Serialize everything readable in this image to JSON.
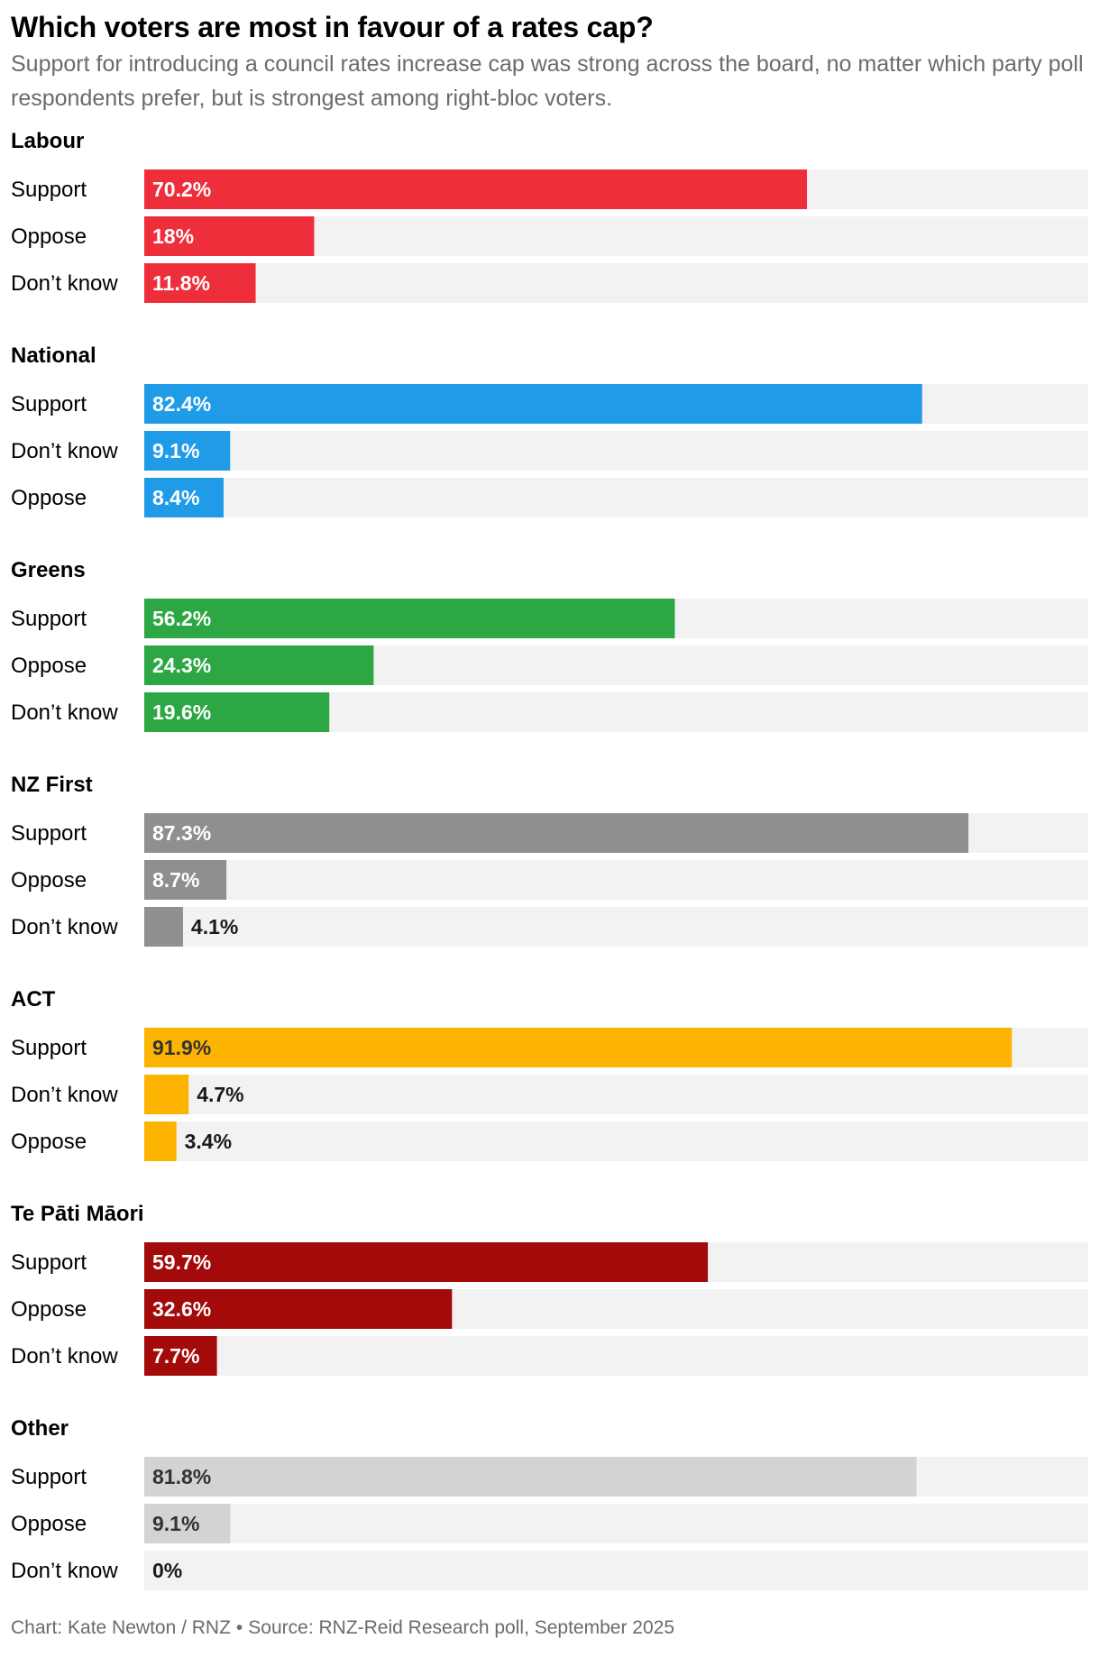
{
  "title": "Which voters are most in favour of a rates cap?",
  "subtitle": "Support for introducing a council rates increase cap was strong across the board, no matter which party poll respondents prefer, but is strongest among right-bloc voters.",
  "footer": {
    "credit": "Chart: Kate Newton / RNZ",
    "separator": "•",
    "source": "Source: RNZ-Reid Research poll, September 2025"
  },
  "chart_data": {
    "type": "bar",
    "orientation": "horizontal",
    "xlim": [
      0,
      100
    ],
    "track_color": "#f2f2f2",
    "groups": [
      {
        "name": "Labour",
        "color": "#ef2e3c",
        "label_color": "#ffffff",
        "bars": [
          {
            "category": "Support",
            "value": 70.2,
            "label": "70.2%"
          },
          {
            "category": "Oppose",
            "value": 18,
            "label": "18%"
          },
          {
            "category": "Don’t know",
            "value": 11.8,
            "label": "11.8%"
          }
        ]
      },
      {
        "name": "National",
        "color": "#1f9be8",
        "label_color": "#ffffff",
        "bars": [
          {
            "category": "Support",
            "value": 82.4,
            "label": "82.4%"
          },
          {
            "category": "Don’t know",
            "value": 9.1,
            "label": "9.1%"
          },
          {
            "category": "Oppose",
            "value": 8.4,
            "label": "8.4%"
          }
        ]
      },
      {
        "name": "Greens",
        "color": "#2ca744",
        "label_color": "#ffffff",
        "bars": [
          {
            "category": "Support",
            "value": 56.2,
            "label": "56.2%"
          },
          {
            "category": "Oppose",
            "value": 24.3,
            "label": "24.3%"
          },
          {
            "category": "Don’t know",
            "value": 19.6,
            "label": "19.6%"
          }
        ]
      },
      {
        "name": "NZ First",
        "color": "#8f8f8f",
        "label_color": "#ffffff",
        "bars": [
          {
            "category": "Support",
            "value": 87.3,
            "label": "87.3%"
          },
          {
            "category": "Oppose",
            "value": 8.7,
            "label": "8.7%"
          },
          {
            "category": "Don’t know",
            "value": 4.1,
            "label": "4.1%"
          }
        ]
      },
      {
        "name": "ACT",
        "color": "#fdb400",
        "label_color": "#333333",
        "bars": [
          {
            "category": "Support",
            "value": 91.9,
            "label": "91.9%"
          },
          {
            "category": "Don’t know",
            "value": 4.7,
            "label": "4.7%"
          },
          {
            "category": "Oppose",
            "value": 3.4,
            "label": "3.4%"
          }
        ]
      },
      {
        "name": "Te Pāti Māori",
        "color": "#a30a0a",
        "label_color": "#ffffff",
        "bars": [
          {
            "category": "Support",
            "value": 59.7,
            "label": "59.7%"
          },
          {
            "category": "Oppose",
            "value": 32.6,
            "label": "32.6%"
          },
          {
            "category": "Don’t know",
            "value": 7.7,
            "label": "7.7%"
          }
        ]
      },
      {
        "name": "Other",
        "color": "#d3d3d3",
        "label_color": "#333333",
        "bars": [
          {
            "category": "Support",
            "value": 81.8,
            "label": "81.8%"
          },
          {
            "category": "Oppose",
            "value": 9.1,
            "label": "9.1%"
          },
          {
            "category": "Don’t know",
            "value": 0,
            "label": "0%"
          }
        ]
      }
    ]
  }
}
